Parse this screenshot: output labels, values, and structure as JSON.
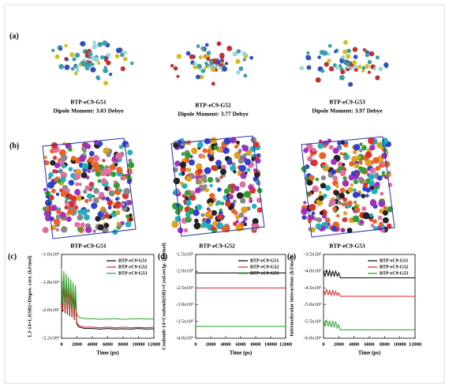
{
  "panel_labels": [
    "(a)",
    "(b)",
    "(c)",
    "(d)",
    "(e)"
  ],
  "molecules": [
    {
      "name": "BTP-eC9-G51",
      "dipole": "Dipole Moment: 3.03 Debye"
    },
    {
      "name": "BTP-eC9-G52",
      "dipole": "Dipole Moment: 3.77 Debye"
    },
    {
      "name": "BTP-eC9-G53",
      "dipole": "Dipole Moment: 3.97 Debye"
    }
  ],
  "boxes": [
    "BTP-eC9-G51",
    "BTP-eC9-G52",
    "BTP-eC9-G53"
  ],
  "chart_data": [
    {
      "type": "line",
      "xlabel": "Time (ps)",
      "ylabel": "LJ-14+LJ(SR)+Disper. corr. (kJ/mol)",
      "x": [
        0,
        150,
        300,
        450,
        600,
        750,
        900,
        1050,
        1200,
        1350,
        1500,
        1650,
        1800,
        1950,
        2100,
        2300,
        2600,
        3000,
        4000,
        5000,
        6000,
        7000,
        8000,
        9000,
        10000,
        11000,
        12000
      ],
      "xlim": [
        0,
        12000
      ],
      "xticks": [
        0,
        2000,
        4000,
        6000,
        8000,
        10000,
        12000
      ],
      "ylim": [
        -2200,
        -1600
      ],
      "yticks": [
        {
          "value": -1600,
          "label": "-1.6x10³"
        },
        {
          "value": -1800,
          "label": "-1.8x10³"
        },
        {
          "value": -2000,
          "label": "-2.0x10³"
        },
        {
          "value": -2200,
          "label": "-2.2x10³"
        }
      ],
      "legend": "upper right",
      "series": [
        {
          "name": "BTP-eC9-G51",
          "color": "#000000",
          "values": [
            -1760,
            -2010,
            -1790,
            -2020,
            -1800,
            -2030,
            -1810,
            -2040,
            -1830,
            -2050,
            -1850,
            -2070,
            -1870,
            -2090,
            -2110,
            -2120,
            -2125,
            -2130,
            -2130,
            -2135,
            -2130,
            -2135,
            -2132,
            -2135,
            -2130,
            -2135,
            -2132
          ]
        },
        {
          "name": "BTP-eC9-G52",
          "color": "#e02020",
          "values": [
            -1750,
            -2000,
            -1780,
            -2010,
            -1790,
            -2020,
            -1800,
            -2030,
            -1820,
            -2040,
            -1840,
            -2060,
            -1860,
            -2080,
            -2100,
            -2110,
            -2115,
            -2120,
            -2120,
            -2125,
            -2120,
            -2125,
            -2120,
            -2125,
            -2122,
            -2125,
            -2120
          ]
        },
        {
          "name": "BTP-eC9-G53",
          "color": "#2ca02c",
          "values": [
            -1700,
            -1950,
            -1720,
            -1960,
            -1740,
            -1970,
            -1760,
            -1980,
            -1780,
            -1990,
            -1800,
            -2000,
            -1820,
            -2020,
            -2040,
            -2050,
            -2055,
            -2060,
            -2060,
            -2065,
            -2062,
            -2060,
            -2065,
            -2062,
            -2060,
            -2063,
            -2062
          ]
        }
      ]
    },
    {
      "type": "line",
      "xlabel": "Time (ps)",
      "ylabel": "Coulomb-14+Coulomb(SR)+Coul.recip. (kJ/mol)",
      "x": [
        0,
        2000,
        4000,
        6000,
        8000,
        10000,
        12000
      ],
      "xlim": [
        0,
        12000
      ],
      "xticks": [
        0,
        2000,
        4000,
        6000,
        8000,
        10000,
        12000
      ],
      "ylim": [
        -400000,
        -150000
      ],
      "yticks": [
        {
          "value": -150000,
          "label": "-1.5x10⁵"
        },
        {
          "value": -200000,
          "label": "-2.0x10⁵"
        },
        {
          "value": -250000,
          "label": "-2.5x10⁵"
        },
        {
          "value": -300000,
          "label": "-3.0x10⁵"
        },
        {
          "value": -350000,
          "label": "-3.5x10⁵"
        },
        {
          "value": -400000,
          "label": "-4.0x10⁵"
        }
      ],
      "legend": "upper right",
      "series": [
        {
          "name": "BTP-eC9-G51",
          "color": "#000000",
          "values": [
            -205000,
            -205000,
            -205000,
            -205000,
            -205000,
            -205000,
            -205000
          ]
        },
        {
          "name": "BTP-eC9-G52",
          "color": "#e02020",
          "values": [
            -250000,
            -250000,
            -250000,
            -250000,
            -250000,
            -250000,
            -250000
          ]
        },
        {
          "name": "BTP-eC9-G53",
          "color": "#2ca02c",
          "values": [
            -365000,
            -365000,
            -365000,
            -365000,
            -365000,
            -365000,
            -365000
          ]
        }
      ]
    },
    {
      "type": "line",
      "xlabel": "Time (ps)",
      "ylabel": "Intermolecular interactions (kJ/mol)",
      "x": [
        0,
        200,
        400,
        600,
        800,
        1000,
        1200,
        1400,
        1600,
        1800,
        2000,
        2200,
        3000,
        4000,
        6000,
        8000,
        10000,
        12000
      ],
      "xlim": [
        0,
        12000
      ],
      "xticks": [
        0,
        2000,
        4000,
        6000,
        8000,
        10000,
        12000
      ],
      "ylim": [
        -6000,
        -3500
      ],
      "yticks": [
        {
          "value": -3500,
          "label": "-3.5x10³"
        },
        {
          "value": -4000,
          "label": "-4.0x10³"
        },
        {
          "value": -4500,
          "label": "-4.5x10³"
        },
        {
          "value": -5000,
          "label": "-5.0x10³"
        },
        {
          "value": -5500,
          "label": "-5.5x10³"
        },
        {
          "value": -6000,
          "label": "-6.0x10³"
        }
      ],
      "legend": "upper right",
      "series": [
        {
          "name": "BTP-eC9-G51",
          "color": "#000000",
          "values": [
            -4000,
            -4150,
            -3950,
            -4150,
            -3980,
            -4150,
            -4000,
            -4150,
            -4000,
            -4150,
            -4050,
            -4200,
            -4200,
            -4200,
            -4200,
            -4200,
            -4200,
            -4200
          ]
        },
        {
          "name": "BTP-eC9-G52",
          "color": "#e02020",
          "values": [
            -4550,
            -4700,
            -4550,
            -4700,
            -4580,
            -4720,
            -4580,
            -4720,
            -4600,
            -4720,
            -4650,
            -4750,
            -4750,
            -4750,
            -4750,
            -4750,
            -4750,
            -4750
          ]
        },
        {
          "name": "BTP-eC9-G53",
          "color": "#2ca02c",
          "values": [
            -5450,
            -5650,
            -5450,
            -5650,
            -5480,
            -5680,
            -5480,
            -5680,
            -5500,
            -5700,
            -5600,
            -5750,
            -5750,
            -5750,
            -5750,
            -5750,
            -5750,
            -5750
          ]
        }
      ]
    }
  ]
}
